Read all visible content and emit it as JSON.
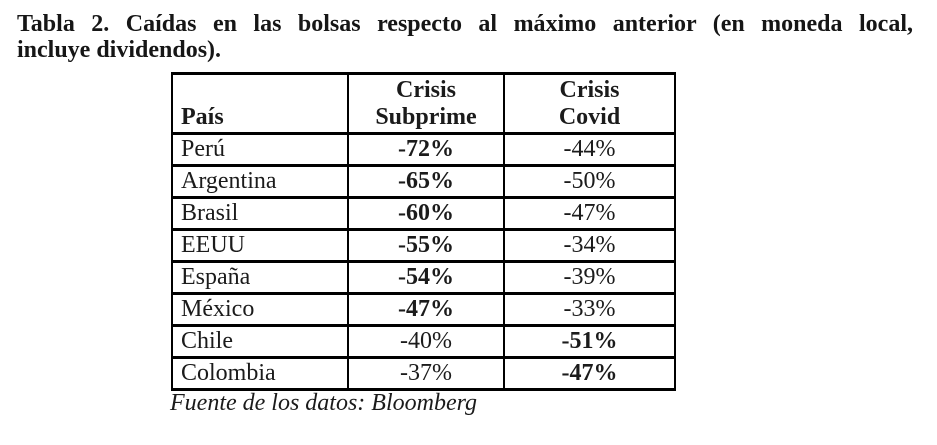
{
  "document": {
    "title_line1": "Tabla 2. Caídas en las bolsas respecto al máximo anterior (en moneda local,",
    "title_line2": "incluye dividendos).",
    "source_note": "Fuente de los datos: Bloomberg"
  },
  "chart_data": {
    "type": "table",
    "title": "Tabla 2. Caídas en las bolsas respecto al máximo anterior (en moneda local, incluye dividendos).",
    "columns": [
      "País",
      "Crisis Subprime",
      "Crisis Covid"
    ],
    "source": "Fuente de los datos: Bloomberg"
  },
  "table": {
    "header": {
      "country": "País",
      "subprime": "Crisis\nSubprime",
      "covid": "Crisis\nCovid"
    },
    "rows": [
      {
        "country": "Perú",
        "subprime": "-72%",
        "covid": "-44%",
        "bold": "subprime"
      },
      {
        "country": "Argentina",
        "subprime": "-65%",
        "covid": "-50%",
        "bold": "subprime"
      },
      {
        "country": "Brasil",
        "subprime": "-60%",
        "covid": "-47%",
        "bold": "subprime"
      },
      {
        "country": "EEUU",
        "subprime": "-55%",
        "covid": "-34%",
        "bold": "subprime"
      },
      {
        "country": "España",
        "subprime": "-54%",
        "covid": "-39%",
        "bold": "subprime"
      },
      {
        "country": "México",
        "subprime": "-47%",
        "covid": "-33%",
        "bold": "subprime"
      },
      {
        "country": "Chile",
        "subprime": "-40%",
        "covid": "-51%",
        "bold": "covid"
      },
      {
        "country": "Colombia",
        "subprime": "-37%",
        "covid": "-47%",
        "bold": "covid"
      }
    ]
  }
}
